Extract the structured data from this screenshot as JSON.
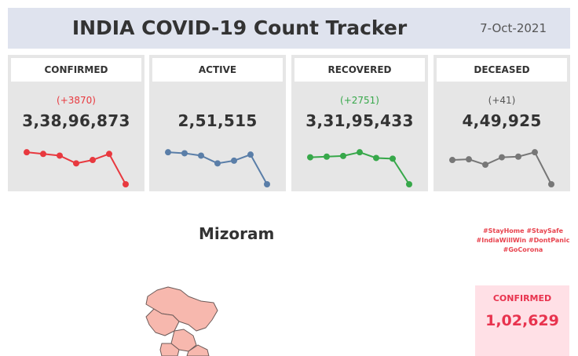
{
  "header": {
    "title": "INDIA COVID-19 Count Tracker",
    "date": "7-Oct-2021"
  },
  "cards": [
    {
      "label": "CONFIRMED",
      "delta": "(+3870)",
      "value": "3,38,96,873",
      "color": "#e8393f",
      "delta_color": "#e8393f",
      "trend": [
        0.95,
        0.9,
        0.85,
        0.62,
        0.72,
        0.9,
        0.0
      ]
    },
    {
      "label": "ACTIVE",
      "delta": "",
      "value": "2,51,515",
      "color": "#5a7ea8",
      "delta_color": "#5a7ea8",
      "trend": [
        0.95,
        0.92,
        0.85,
        0.62,
        0.7,
        0.88,
        0.0
      ]
    },
    {
      "label": "RECOVERED",
      "delta": "(+2751)",
      "value": "3,31,95,433",
      "color": "#37a84a",
      "delta_color": "#37a84a",
      "trend": [
        0.8,
        0.82,
        0.84,
        0.95,
        0.78,
        0.76,
        0.0
      ]
    },
    {
      "label": "DECEASED",
      "delta": "(+41)",
      "value": "4,49,925",
      "color": "#777777",
      "delta_color": "#555555",
      "trend": [
        0.72,
        0.74,
        0.58,
        0.8,
        0.82,
        0.95,
        0.0
      ]
    }
  ],
  "state": {
    "name": "Mizoram"
  },
  "hashtags": [
    "#StayHome #StaySafe",
    "#IndiaWillWin #DontPanic",
    "#GoCorona"
  ],
  "state_confirmed": {
    "label": "CONFIRMED",
    "value": "1,02,629"
  }
}
